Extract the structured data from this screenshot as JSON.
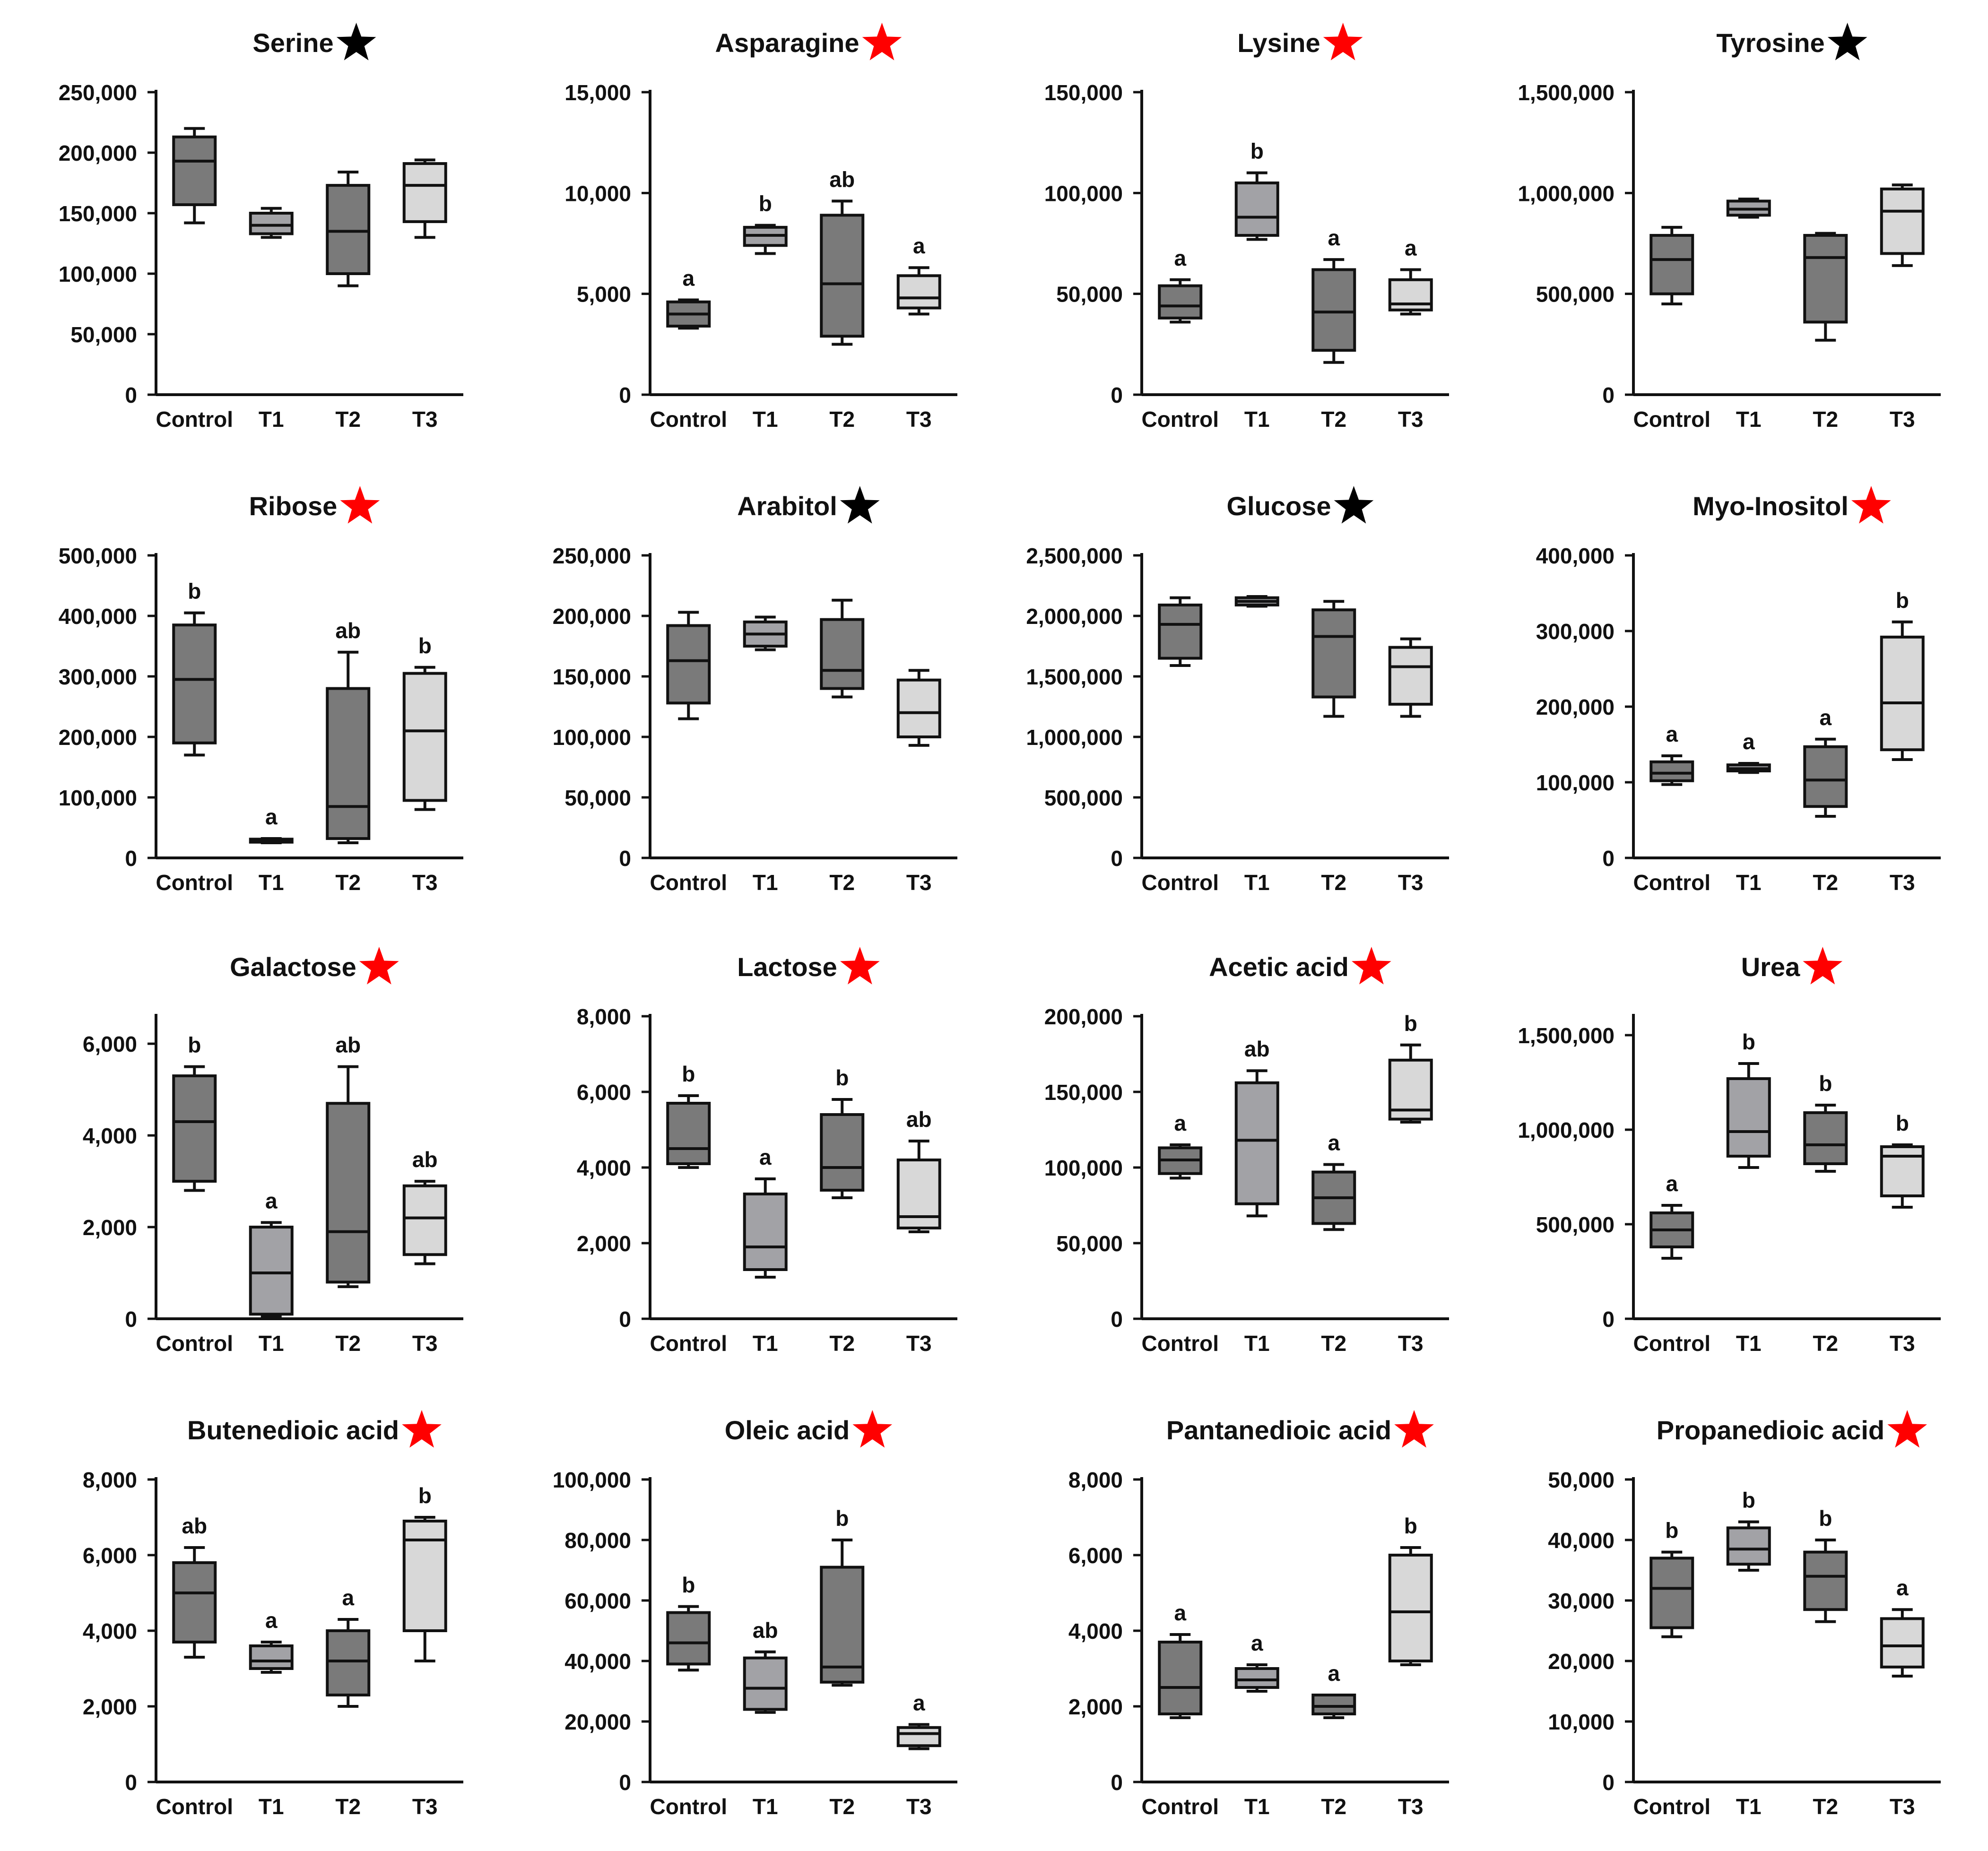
{
  "styles": {
    "colors": {
      "Control": "#7a7a7a",
      "T1": "#a2a2a6",
      "T2": "#7a7a7a",
      "T3": "#d8d8d8"
    },
    "star_colors": {
      "red": "#ff0000",
      "black": "#000000"
    }
  },
  "chart_data": [
    {
      "type": "box",
      "title": "Serine",
      "star": "black",
      "categories": [
        "Control",
        "T1",
        "T2",
        "T3"
      ],
      "yticks": [
        "0",
        "50,000",
        "100,000",
        "150,000",
        "200,000",
        "250,000"
      ],
      "ylim": [
        0,
        250000
      ],
      "boxes": [
        {
          "min": 142000,
          "q1": 157000,
          "median": 193000,
          "q3": 213000,
          "max": 220000,
          "letter": ""
        },
        {
          "min": 130000,
          "q1": 133000,
          "median": 140000,
          "q3": 150000,
          "max": 154000,
          "letter": ""
        },
        {
          "min": 90000,
          "q1": 100000,
          "median": 135000,
          "q3": 173000,
          "max": 184000,
          "letter": ""
        },
        {
          "min": 130000,
          "q1": 143000,
          "median": 173000,
          "q3": 191000,
          "max": 194000,
          "letter": ""
        }
      ]
    },
    {
      "type": "box",
      "title": "Asparagine",
      "star": "red",
      "categories": [
        "Control",
        "T1",
        "T2",
        "T3"
      ],
      "yticks": [
        "0",
        "5,000",
        "10,000",
        "15,000"
      ],
      "ylim": [
        0,
        15000
      ],
      "boxes": [
        {
          "min": 3300,
          "q1": 3400,
          "median": 4000,
          "q3": 4600,
          "max": 4700,
          "letter": "a"
        },
        {
          "min": 7000,
          "q1": 7400,
          "median": 7900,
          "q3": 8300,
          "max": 8400,
          "letter": "b"
        },
        {
          "min": 2500,
          "q1": 2900,
          "median": 5500,
          "q3": 8900,
          "max": 9600,
          "letter": "ab"
        },
        {
          "min": 4000,
          "q1": 4300,
          "median": 4800,
          "q3": 5900,
          "max": 6300,
          "letter": "a"
        }
      ]
    },
    {
      "type": "box",
      "title": "Lysine",
      "star": "red",
      "categories": [
        "Control",
        "T1",
        "T2",
        "T3"
      ],
      "yticks": [
        "0",
        "50,000",
        "100,000",
        "150,000"
      ],
      "ylim": [
        0,
        150000
      ],
      "boxes": [
        {
          "min": 36000,
          "q1": 38000,
          "median": 44000,
          "q3": 54000,
          "max": 57000,
          "letter": "a"
        },
        {
          "min": 77000,
          "q1": 79000,
          "median": 88000,
          "q3": 105000,
          "max": 110000,
          "letter": "b"
        },
        {
          "min": 16000,
          "q1": 22000,
          "median": 41000,
          "q3": 62000,
          "max": 67000,
          "letter": "a"
        },
        {
          "min": 40000,
          "q1": 42000,
          "median": 45000,
          "q3": 57000,
          "max": 62000,
          "letter": "a"
        }
      ]
    },
    {
      "type": "box",
      "title": "Tyrosine",
      "star": "black",
      "categories": [
        "Control",
        "T1",
        "T2",
        "T3"
      ],
      "yticks": [
        "0",
        "500,000",
        "1,000,000",
        "1,500,000"
      ],
      "ylim": [
        0,
        1500000
      ],
      "boxes": [
        {
          "min": 450000,
          "q1": 500000,
          "median": 670000,
          "q3": 790000,
          "max": 830000,
          "letter": ""
        },
        {
          "min": 880000,
          "q1": 890000,
          "median": 920000,
          "q3": 960000,
          "max": 970000,
          "letter": ""
        },
        {
          "min": 270000,
          "q1": 360000,
          "median": 680000,
          "q3": 790000,
          "max": 800000,
          "letter": ""
        },
        {
          "min": 640000,
          "q1": 700000,
          "median": 910000,
          "q3": 1020000,
          "max": 1040000,
          "letter": ""
        }
      ]
    },
    {
      "type": "box",
      "title": "Ribose",
      "star": "red",
      "categories": [
        "Control",
        "T1",
        "T2",
        "T3"
      ],
      "yticks": [
        "0",
        "100,000",
        "200,000",
        "300,000",
        "400,000",
        "500,000"
      ],
      "ylim": [
        0,
        500000
      ],
      "boxes": [
        {
          "min": 170000,
          "q1": 190000,
          "median": 295000,
          "q3": 385000,
          "max": 405000,
          "letter": "b"
        },
        {
          "min": 25000,
          "q1": 26000,
          "median": 28000,
          "q3": 31000,
          "max": 32000,
          "letter": "a"
        },
        {
          "min": 25000,
          "q1": 32000,
          "median": 85000,
          "q3": 280000,
          "max": 340000,
          "letter": "ab"
        },
        {
          "min": 80000,
          "q1": 95000,
          "median": 210000,
          "q3": 305000,
          "max": 315000,
          "letter": "b"
        }
      ]
    },
    {
      "type": "box",
      "title": "Arabitol",
      "star": "black",
      "categories": [
        "Control",
        "T1",
        "T2",
        "T3"
      ],
      "yticks": [
        "0",
        "50,000",
        "100,000",
        "150,000",
        "200,000",
        "250,000"
      ],
      "ylim": [
        0,
        250000
      ],
      "boxes": [
        {
          "min": 115000,
          "q1": 128000,
          "median": 163000,
          "q3": 192000,
          "max": 203000,
          "letter": ""
        },
        {
          "min": 172000,
          "q1": 175000,
          "median": 185000,
          "q3": 195000,
          "max": 199000,
          "letter": ""
        },
        {
          "min": 133000,
          "q1": 140000,
          "median": 155000,
          "q3": 197000,
          "max": 213000,
          "letter": ""
        },
        {
          "min": 93000,
          "q1": 100000,
          "median": 120000,
          "q3": 147000,
          "max": 155000,
          "letter": ""
        }
      ]
    },
    {
      "type": "box",
      "title": "Glucose",
      "star": "black",
      "categories": [
        "Control",
        "T1",
        "T2",
        "T3"
      ],
      "yticks": [
        "0",
        "500,000",
        "1,000,000",
        "1,500,000",
        "2,000,000",
        "2,500,000"
      ],
      "ylim": [
        0,
        2500000
      ],
      "boxes": [
        {
          "min": 1590000,
          "q1": 1650000,
          "median": 1930000,
          "q3": 2090000,
          "max": 2150000,
          "letter": ""
        },
        {
          "min": 2080000,
          "q1": 2090000,
          "median": 2120000,
          "q3": 2150000,
          "max": 2160000,
          "letter": ""
        },
        {
          "min": 1170000,
          "q1": 1330000,
          "median": 1830000,
          "q3": 2050000,
          "max": 2120000,
          "letter": ""
        },
        {
          "min": 1170000,
          "q1": 1270000,
          "median": 1580000,
          "q3": 1740000,
          "max": 1810000,
          "letter": ""
        }
      ]
    },
    {
      "type": "box",
      "title": "Myo-Inositol",
      "star": "red",
      "categories": [
        "Control",
        "T1",
        "T2",
        "T3"
      ],
      "yticks": [
        "0",
        "100,000",
        "200,000",
        "300,000",
        "400,000"
      ],
      "ylim": [
        0,
        400000
      ],
      "boxes": [
        {
          "min": 97000,
          "q1": 102000,
          "median": 112000,
          "q3": 127000,
          "max": 135000,
          "letter": "a"
        },
        {
          "min": 113000,
          "q1": 115000,
          "median": 118000,
          "q3": 123000,
          "max": 125000,
          "letter": "a"
        },
        {
          "min": 55000,
          "q1": 68000,
          "median": 103000,
          "q3": 147000,
          "max": 157000,
          "letter": "a"
        },
        {
          "min": 130000,
          "q1": 143000,
          "median": 205000,
          "q3": 292000,
          "max": 312000,
          "letter": "b"
        }
      ]
    },
    {
      "type": "box",
      "title": "Galactose",
      "star": "red",
      "categories": [
        "Control",
        "T1",
        "T2",
        "T3"
      ],
      "yticks": [
        "0",
        "2,000",
        "4,000",
        "6,000"
      ],
      "ylim": [
        0,
        6600
      ],
      "boxes": [
        {
          "min": 2800,
          "q1": 3000,
          "median": 4300,
          "q3": 5300,
          "max": 5500,
          "letter": "b"
        },
        {
          "min": 50,
          "q1": 100,
          "median": 1000,
          "q3": 2000,
          "max": 2100,
          "letter": "a"
        },
        {
          "min": 700,
          "q1": 800,
          "median": 1900,
          "q3": 4700,
          "max": 5500,
          "letter": "ab"
        },
        {
          "min": 1200,
          "q1": 1400,
          "median": 2200,
          "q3": 2900,
          "max": 3000,
          "letter": "ab"
        }
      ]
    },
    {
      "type": "box",
      "title": "Lactose",
      "star": "red",
      "categories": [
        "Control",
        "T1",
        "T2",
        "T3"
      ],
      "yticks": [
        "0",
        "2,000",
        "4,000",
        "6,000",
        "8,000"
      ],
      "ylim": [
        0,
        8000
      ],
      "boxes": [
        {
          "min": 4000,
          "q1": 4100,
          "median": 4500,
          "q3": 5700,
          "max": 5900,
          "letter": "b"
        },
        {
          "min": 1100,
          "q1": 1300,
          "median": 1900,
          "q3": 3300,
          "max": 3700,
          "letter": "a"
        },
        {
          "min": 3200,
          "q1": 3400,
          "median": 4000,
          "q3": 5400,
          "max": 5800,
          "letter": "b"
        },
        {
          "min": 2300,
          "q1": 2400,
          "median": 2700,
          "q3": 4200,
          "max": 4700,
          "letter": "ab"
        }
      ]
    },
    {
      "type": "box",
      "title": "Acetic acid",
      "star": "red",
      "categories": [
        "Control",
        "T1",
        "T2",
        "T3"
      ],
      "yticks": [
        "0",
        "50,000",
        "100,000",
        "150,000",
        "200,000"
      ],
      "ylim": [
        0,
        200000
      ],
      "boxes": [
        {
          "min": 93000,
          "q1": 96000,
          "median": 105000,
          "q3": 113000,
          "max": 115000,
          "letter": "a"
        },
        {
          "min": 68000,
          "q1": 76000,
          "median": 118000,
          "q3": 156000,
          "max": 164000,
          "letter": "ab"
        },
        {
          "min": 59000,
          "q1": 63000,
          "median": 80000,
          "q3": 97000,
          "max": 102000,
          "letter": "a"
        },
        {
          "min": 130000,
          "q1": 132000,
          "median": 138000,
          "q3": 171000,
          "max": 181000,
          "letter": "b"
        }
      ]
    },
    {
      "type": "box",
      "title": "Urea",
      "star": "red",
      "categories": [
        "Control",
        "T1",
        "T2",
        "T3"
      ],
      "yticks": [
        "0",
        "500,000",
        "1,000,000",
        "1,500,000"
      ],
      "ylim": [
        0,
        1600000
      ],
      "boxes": [
        {
          "min": 320000,
          "q1": 380000,
          "median": 470000,
          "q3": 560000,
          "max": 600000,
          "letter": "a"
        },
        {
          "min": 800000,
          "q1": 860000,
          "median": 990000,
          "q3": 1270000,
          "max": 1350000,
          "letter": "b"
        },
        {
          "min": 780000,
          "q1": 820000,
          "median": 920000,
          "q3": 1090000,
          "max": 1130000,
          "letter": "b"
        },
        {
          "min": 590000,
          "q1": 650000,
          "median": 860000,
          "q3": 910000,
          "max": 920000,
          "letter": "b"
        }
      ]
    },
    {
      "type": "box",
      "title": "Butenedioic acid",
      "star": "red",
      "categories": [
        "Control",
        "T1",
        "T2",
        "T3"
      ],
      "yticks": [
        "0",
        "2,000",
        "4,000",
        "6,000",
        "8,000"
      ],
      "ylim": [
        0,
        8000
      ],
      "boxes": [
        {
          "min": 3300,
          "q1": 3700,
          "median": 5000,
          "q3": 5800,
          "max": 6200,
          "letter": "ab"
        },
        {
          "min": 2900,
          "q1": 3000,
          "median": 3200,
          "q3": 3600,
          "max": 3700,
          "letter": "a"
        },
        {
          "min": 2000,
          "q1": 2300,
          "median": 3200,
          "q3": 4000,
          "max": 4300,
          "letter": "a"
        },
        {
          "min": 3200,
          "q1": 4000,
          "median": 6400,
          "q3": 6900,
          "max": 7000,
          "letter": "b"
        }
      ]
    },
    {
      "type": "box",
      "title": "Oleic acid",
      "star": "red",
      "categories": [
        "Control",
        "T1",
        "T2",
        "T3"
      ],
      "yticks": [
        "0",
        "20,000",
        "40,000",
        "60,000",
        "80,000",
        "100,000"
      ],
      "ylim": [
        0,
        100000
      ],
      "boxes": [
        {
          "min": 37000,
          "q1": 39000,
          "median": 46000,
          "q3": 56000,
          "max": 58000,
          "letter": "b"
        },
        {
          "min": 23000,
          "q1": 24000,
          "median": 31000,
          "q3": 41000,
          "max": 43000,
          "letter": "ab"
        },
        {
          "min": 32000,
          "q1": 33000,
          "median": 38000,
          "q3": 71000,
          "max": 80000,
          "letter": "b"
        },
        {
          "min": 11000,
          "q1": 12000,
          "median": 16000,
          "q3": 18000,
          "max": 19000,
          "letter": "a"
        }
      ]
    },
    {
      "type": "box",
      "title": "Pantanedioic acid",
      "star": "red",
      "categories": [
        "Control",
        "T1",
        "T2",
        "T3"
      ],
      "yticks": [
        "0",
        "2,000",
        "4,000",
        "6,000",
        "8,000"
      ],
      "ylim": [
        0,
        8000
      ],
      "boxes": [
        {
          "min": 1700,
          "q1": 1800,
          "median": 2500,
          "q3": 3700,
          "max": 3900,
          "letter": "a"
        },
        {
          "min": 2400,
          "q1": 2500,
          "median": 2700,
          "q3": 3000,
          "max": 3100,
          "letter": "a"
        },
        {
          "min": 1700,
          "q1": 1800,
          "median": 2000,
          "q3": 2300,
          "max": 2300,
          "letter": "a"
        },
        {
          "min": 3100,
          "q1": 3200,
          "median": 4500,
          "q3": 6000,
          "max": 6200,
          "letter": "b"
        }
      ]
    },
    {
      "type": "box",
      "title": "Propanedioic acid",
      "star": "red",
      "categories": [
        "Control",
        "T1",
        "T2",
        "T3"
      ],
      "yticks": [
        "0",
        "10,000",
        "20,000",
        "30,000",
        "40,000",
        "50,000"
      ],
      "ylim": [
        0,
        50000
      ],
      "boxes": [
        {
          "min": 24000,
          "q1": 25500,
          "median": 32000,
          "q3": 37000,
          "max": 38000,
          "letter": "b"
        },
        {
          "min": 35000,
          "q1": 36000,
          "median": 38500,
          "q3": 42000,
          "max": 43000,
          "letter": "b"
        },
        {
          "min": 26500,
          "q1": 28500,
          "median": 34000,
          "q3": 38000,
          "max": 40000,
          "letter": "b"
        },
        {
          "min": 17500,
          "q1": 19000,
          "median": 22500,
          "q3": 27000,
          "max": 28500,
          "letter": "a"
        }
      ]
    }
  ]
}
